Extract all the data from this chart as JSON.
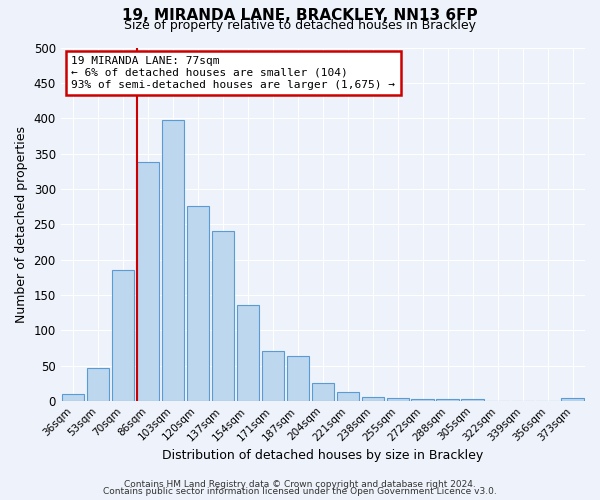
{
  "title": "19, MIRANDA LANE, BRACKLEY, NN13 6FP",
  "subtitle": "Size of property relative to detached houses in Brackley",
  "xlabel": "Distribution of detached houses by size in Brackley",
  "ylabel": "Number of detached properties",
  "bin_labels": [
    "36sqm",
    "53sqm",
    "70sqm",
    "86sqm",
    "103sqm",
    "120sqm",
    "137sqm",
    "154sqm",
    "171sqm",
    "187sqm",
    "204sqm",
    "221sqm",
    "238sqm",
    "255sqm",
    "272sqm",
    "288sqm",
    "305sqm",
    "322sqm",
    "339sqm",
    "356sqm",
    "373sqm"
  ],
  "bar_values": [
    9,
    47,
    185,
    338,
    398,
    276,
    240,
    136,
    70,
    63,
    25,
    12,
    6,
    4,
    3,
    3,
    3,
    0,
    0,
    0,
    4
  ],
  "bar_color": "#bdd7ee",
  "bar_edge_color": "#5b9bd5",
  "bar_edge_width": 0.8,
  "vline_x_index": 3,
  "vline_color": "#cc0000",
  "annotation_text": "19 MIRANDA LANE: 77sqm\n← 6% of detached houses are smaller (104)\n93% of semi-detached houses are larger (1,675) →",
  "annotation_box_color": "white",
  "annotation_box_edge_color": "#cc0000",
  "ylim": [
    0,
    500
  ],
  "yticks": [
    0,
    50,
    100,
    150,
    200,
    250,
    300,
    350,
    400,
    450,
    500
  ],
  "footer_line1": "Contains HM Land Registry data © Crown copyright and database right 2024.",
  "footer_line2": "Contains public sector information licensed under the Open Government Licence v3.0.",
  "background_color": "#eef2fa",
  "grid_color": "#ffffff",
  "fig_width": 6.0,
  "fig_height": 5.0,
  "dpi": 100
}
